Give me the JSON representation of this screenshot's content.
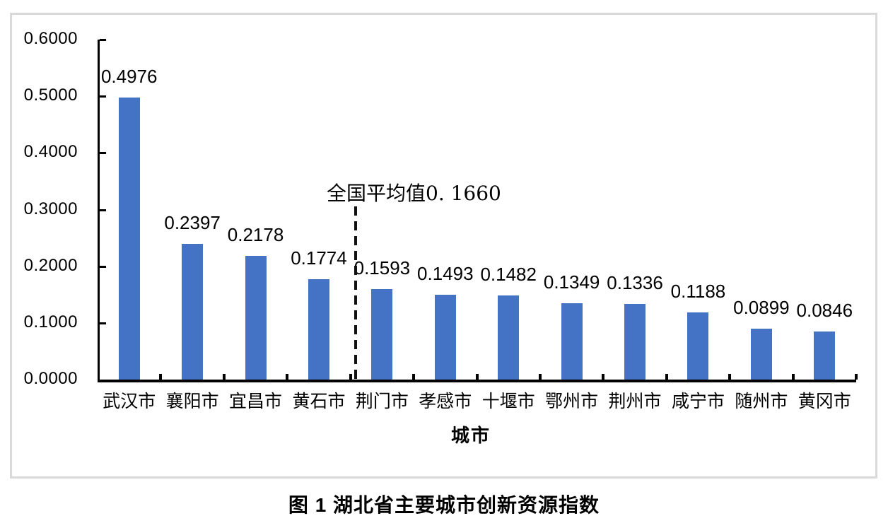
{
  "caption": "图 1 湖北省主要城市创新资源指数",
  "chart_data": {
    "type": "bar",
    "title": "",
    "categories": [
      "武汉市",
      "襄阳市",
      "宜昌市",
      "黄石市",
      "荆门市",
      "孝感市",
      "十堰市",
      "鄂州市",
      "荆州市",
      "咸宁市",
      "随州市",
      "黄冈市"
    ],
    "values": [
      0.4976,
      0.2397,
      0.2178,
      0.1774,
      0.1593,
      0.1493,
      0.1482,
      0.1349,
      0.1336,
      0.1188,
      0.0899,
      0.0846
    ],
    "value_labels": [
      "0.4976",
      "0.2397",
      "0.2178",
      "0.1774",
      "0.1593",
      "0.1493",
      "0.1482",
      "0.1349",
      "0.1336",
      "0.1188",
      "0.0899",
      "0.0846"
    ],
    "xlabel": "城市",
    "ylabel": "",
    "ylim": [
      0.0,
      0.6
    ],
    "ytick_step": 0.1,
    "ytick_labels": [
      "0.0000",
      "0.1000",
      "0.2000",
      "0.3000",
      "0.4000",
      "0.5000",
      "0.6000"
    ],
    "grid": false,
    "legend": "none",
    "bar_color": "#4472C4",
    "frame_color": "#d9d9d9",
    "reference_line": {
      "label": "全国平均值0. 1660",
      "value": 0.166,
      "style": "vertical-dashed",
      "between_categories": [
        "黄石市",
        "荆门市"
      ]
    }
  }
}
